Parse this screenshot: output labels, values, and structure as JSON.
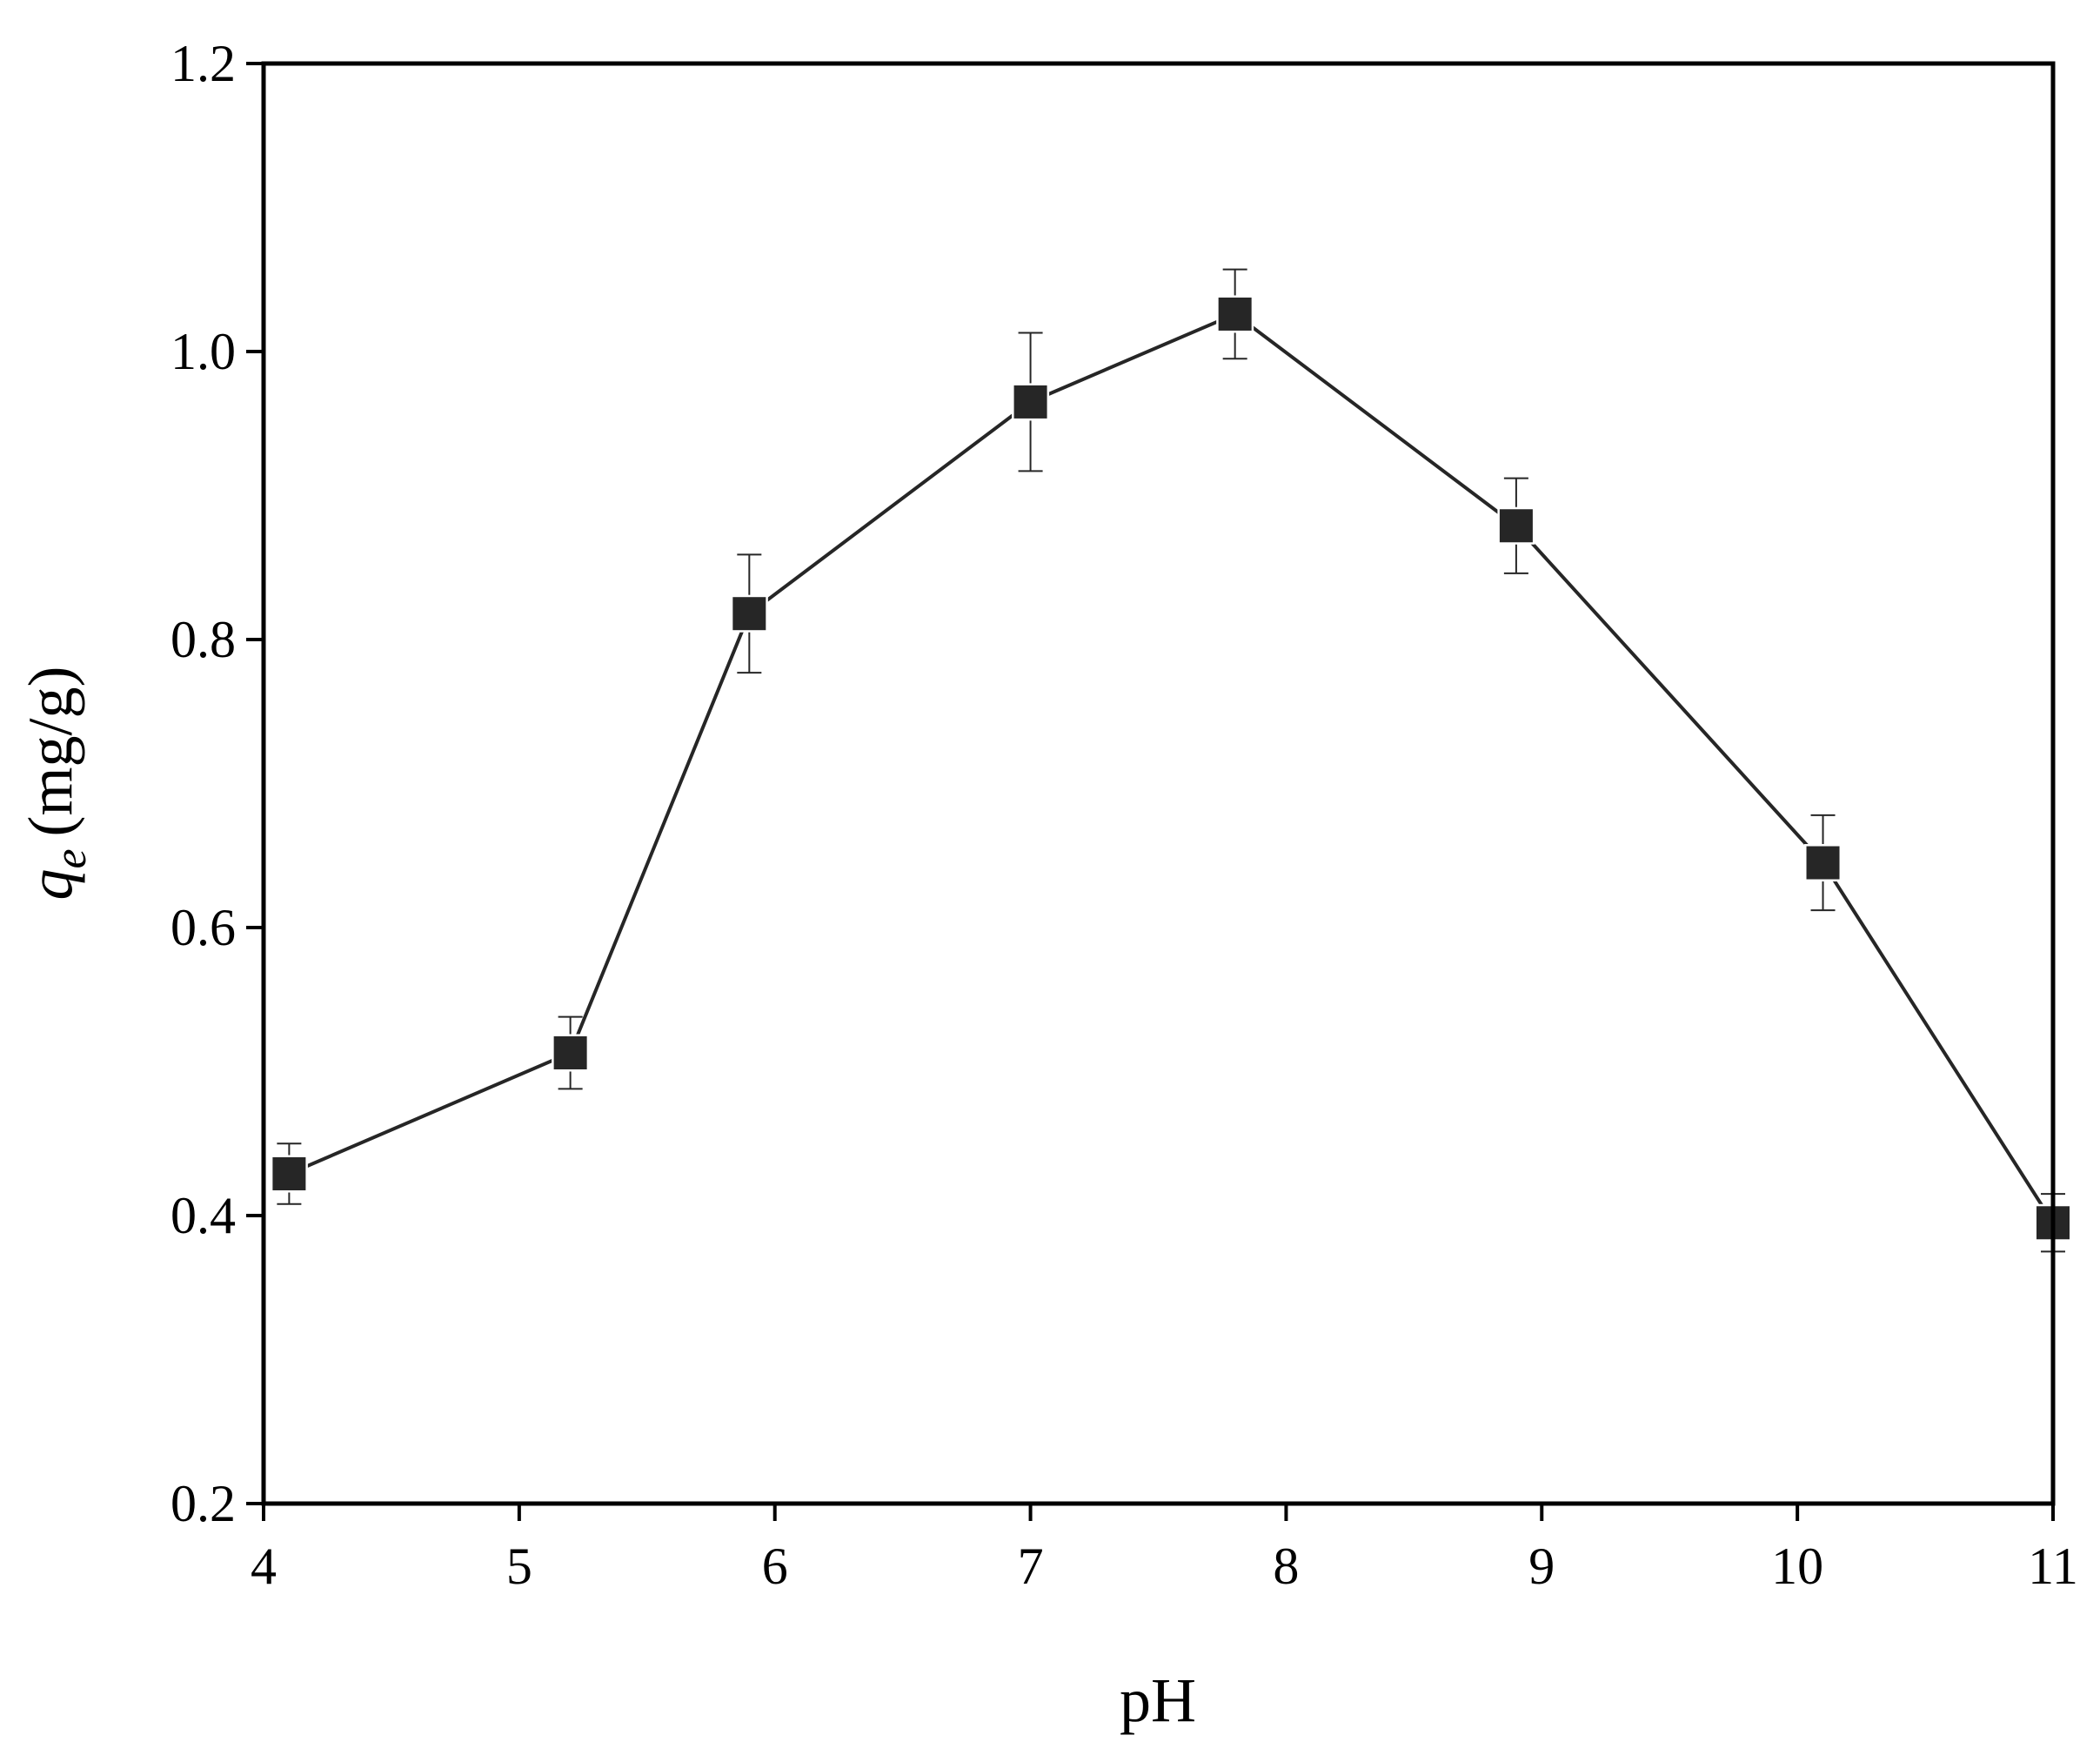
{
  "chart_data": {
    "type": "line",
    "xlabel": "pH",
    "ylabel": "q",
    "ylabel_sub": "e",
    "ylabel_unit": "(mg/g)",
    "x": [
      4.1,
      5.2,
      5.9,
      7.0,
      7.8,
      8.9,
      10.1,
      11.0
    ],
    "series": [
      {
        "color": "#262626",
        "values": [
          0.429,
          0.513,
          0.818,
          0.965,
          1.026,
          0.879,
          0.645,
          0.395
        ],
        "errors": [
          0.021,
          0.025,
          0.041,
          0.048,
          0.031,
          0.033,
          0.033,
          0.02
        ]
      }
    ],
    "xlim": [
      4,
      11
    ],
    "xticks": [
      4,
      5,
      6,
      7,
      8,
      9,
      10,
      11
    ],
    "ylim": [
      0.2,
      1.2
    ],
    "yticks": [
      0.2,
      0.4,
      0.6,
      0.8,
      {
        "value": 1.0,
        "label": "1.0"
      },
      1.2
    ],
    "grid": false
  }
}
